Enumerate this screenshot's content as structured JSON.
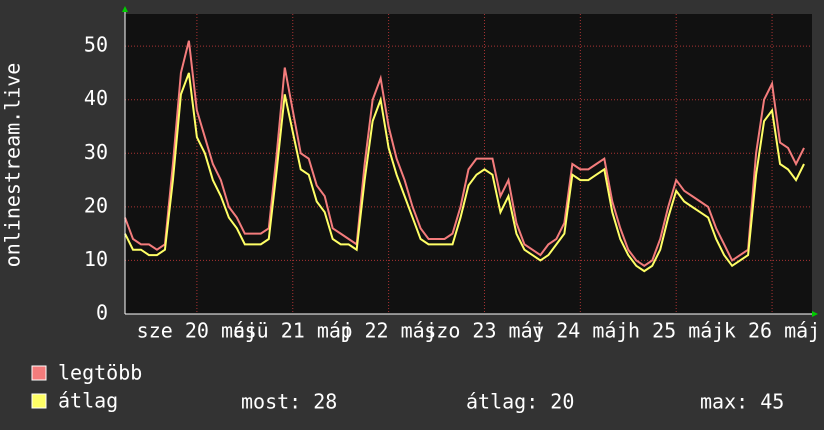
{
  "chart_data": {
    "type": "line",
    "y_label": "onlinestream.live",
    "x": [
      0,
      2,
      4,
      6,
      8,
      10,
      12,
      14,
      16,
      18,
      20,
      22,
      24,
      26,
      28,
      30,
      32,
      34,
      36,
      38,
      40,
      42,
      44,
      46,
      48,
      50,
      52,
      54,
      56,
      58,
      60,
      62,
      64,
      66,
      68,
      70,
      72,
      74,
      76,
      78,
      80,
      82,
      84,
      86,
      88,
      90,
      92,
      94,
      96,
      98,
      100,
      102,
      104,
      106,
      108,
      110,
      112,
      114,
      116,
      118,
      120,
      122,
      124,
      126,
      128,
      130,
      132,
      134,
      136,
      138,
      140,
      142,
      144,
      146,
      148,
      150,
      152,
      154,
      156,
      158,
      160,
      162,
      164,
      166,
      168,
      170
    ],
    "xlim": [
      0,
      172
    ],
    "xticks": [
      {
        "value": 18,
        "label": "sze 20 máj"
      },
      {
        "value": 42,
        "label": "csü 21 máj"
      },
      {
        "value": 66,
        "label": "p 22 máj"
      },
      {
        "value": 90,
        "label": "szo 23 máj"
      },
      {
        "value": 114,
        "label": "v 24 máj"
      },
      {
        "value": 138,
        "label": "h 25 máj"
      },
      {
        "value": 162,
        "label": "k 26 máj"
      }
    ],
    "ylim": [
      0,
      56
    ],
    "yticks": [
      0,
      10,
      20,
      30,
      40,
      50
    ],
    "grid": true,
    "series": [
      {
        "name": "legtöbb",
        "color": "#f47c7c",
        "values": [
          18,
          14,
          13,
          13,
          12,
          13,
          28,
          45,
          51,
          38,
          33,
          28,
          25,
          20,
          18,
          15,
          15,
          15,
          16,
          30,
          46,
          38,
          30,
          29,
          24,
          22,
          16,
          15,
          14,
          13,
          28,
          40,
          44,
          35,
          29,
          25,
          20,
          16,
          14,
          14,
          14,
          15,
          20,
          27,
          29,
          29,
          29,
          22,
          25,
          17,
          13,
          12,
          11,
          13,
          14,
          17,
          28,
          27,
          27,
          28,
          29,
          21,
          16,
          12,
          10,
          9,
          10,
          14,
          20,
          25,
          23,
          22,
          21,
          20,
          16,
          13,
          10,
          11,
          12,
          30,
          40,
          43,
          32,
          31,
          28,
          31
        ]
      },
      {
        "name": "átlag",
        "color": "#ffff66",
        "values": [
          15,
          12,
          12,
          11,
          11,
          12,
          25,
          41,
          45,
          33,
          30,
          25,
          22,
          18,
          16,
          13,
          13,
          13,
          14,
          27,
          41,
          34,
          27,
          26,
          21,
          19,
          14,
          13,
          13,
          12,
          25,
          36,
          40,
          31,
          26,
          22,
          18,
          14,
          13,
          13,
          13,
          13,
          18,
          24,
          26,
          27,
          26,
          19,
          22,
          15,
          12,
          11,
          10,
          11,
          13,
          15,
          26,
          25,
          25,
          26,
          27,
          19,
          14,
          11,
          9,
          8,
          9,
          12,
          18,
          23,
          21,
          20,
          19,
          18,
          14,
          11,
          9,
          10,
          11,
          26,
          36,
          38,
          28,
          27,
          25,
          28
        ]
      }
    ],
    "stats": [
      "most: 28",
      "átlag: 20",
      "max: 45"
    ]
  }
}
